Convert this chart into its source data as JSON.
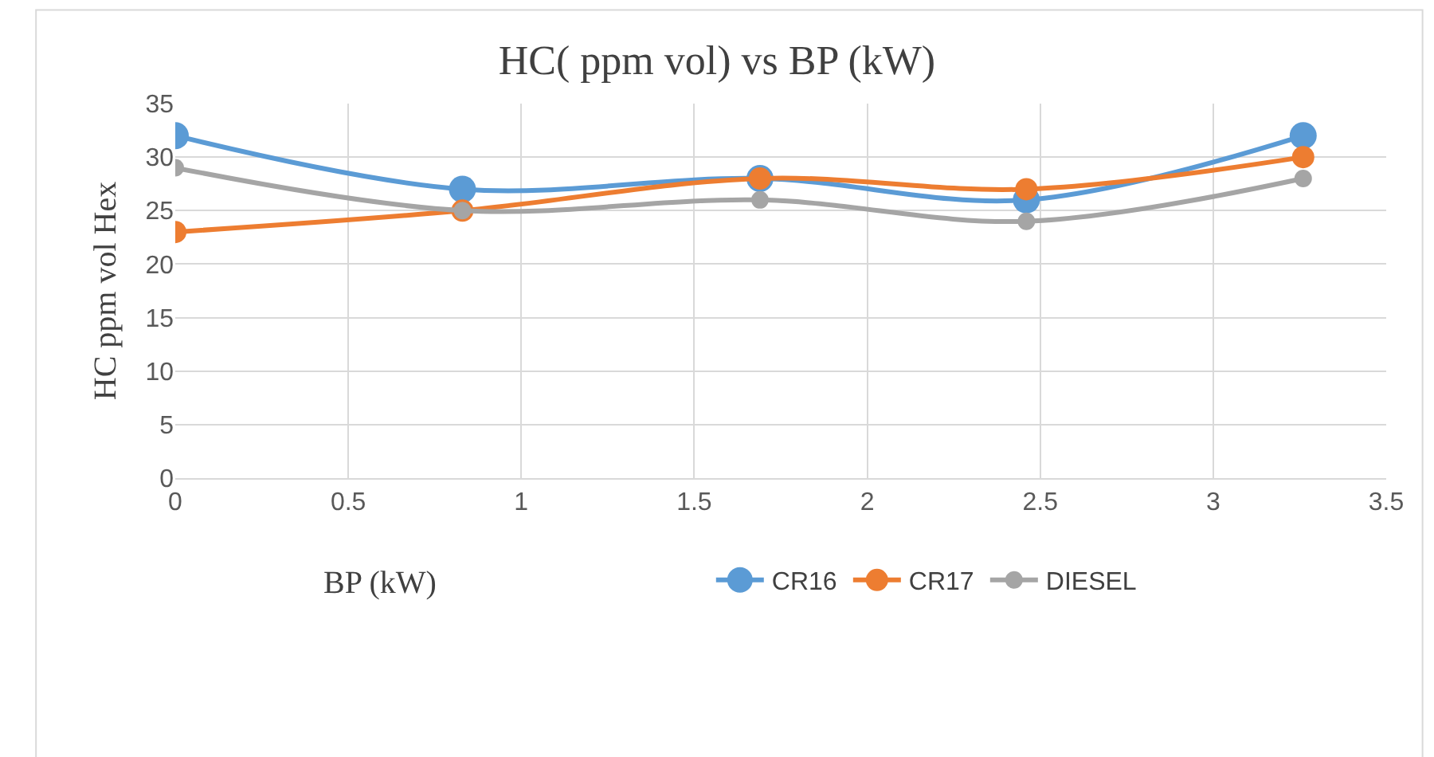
{
  "chart_data": {
    "type": "line",
    "title": "HC( ppm vol) vs BP (kW)",
    "xlabel": "BP (kW)",
    "ylabel": "HC ppm vol Hex",
    "x": [
      0,
      0.83,
      1.69,
      2.46,
      3.26
    ],
    "series": [
      {
        "name": "CR16",
        "color": "#5b9bd5",
        "values": [
          32,
          27,
          28,
          26,
          32
        ]
      },
      {
        "name": "CR17",
        "color": "#ed7d31",
        "values": [
          23,
          25,
          28,
          27,
          30
        ]
      },
      {
        "name": "DIESEL",
        "color": "#a5a5a5",
        "values": [
          29,
          25,
          26,
          24,
          28
        ]
      }
    ],
    "xlim": [
      0,
      3.5
    ],
    "xticks": [
      0,
      0.5,
      1,
      1.5,
      2,
      2.5,
      3,
      3.5
    ],
    "ylim": [
      0,
      35
    ],
    "yticks": [
      0,
      5,
      10,
      15,
      20,
      25,
      30,
      35
    ],
    "grid": true,
    "legend": "bottom",
    "marker": "circle",
    "line_style": "solid"
  }
}
